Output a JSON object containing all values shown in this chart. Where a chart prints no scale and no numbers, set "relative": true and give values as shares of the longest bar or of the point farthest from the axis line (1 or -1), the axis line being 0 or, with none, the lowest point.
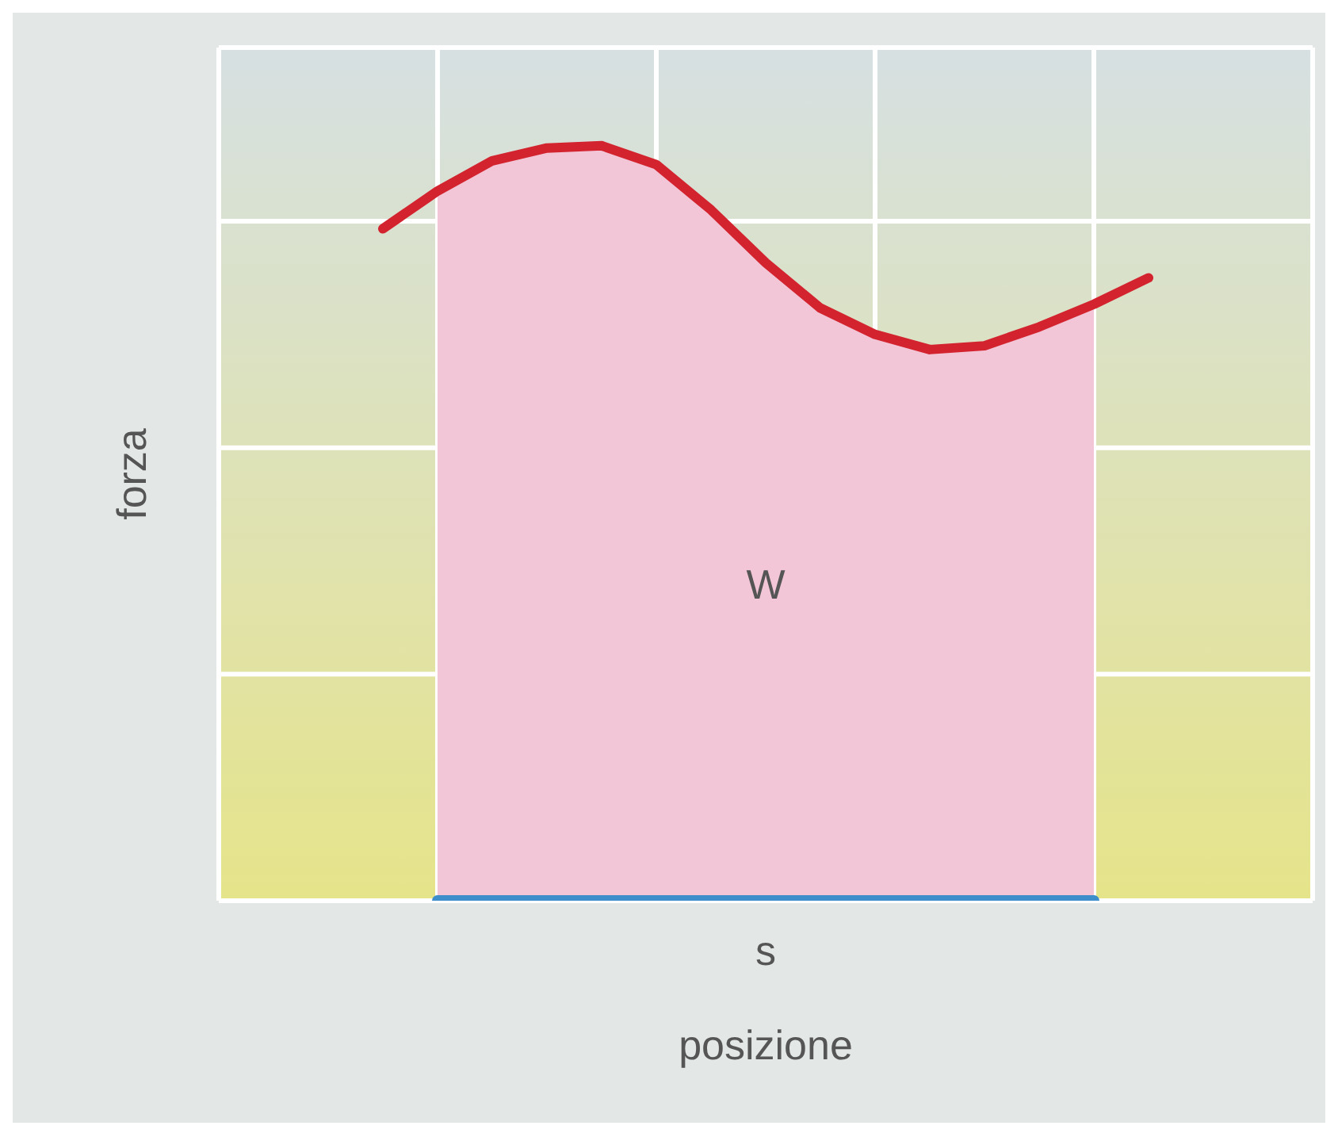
{
  "chart_data": {
    "type": "line",
    "relative": true,
    "xlabel": "posizione",
    "ylabel": "forza",
    "grid": true,
    "marker": "none",
    "line_style": "solid",
    "categories": [
      null,
      null,
      null,
      null,
      null,
      null,
      null,
      null,
      null,
      null,
      null,
      null,
      null,
      null,
      null,
      null,
      null,
      null,
      null,
      null,
      null
    ],
    "series": [
      {
        "type": "area",
        "color": "#f2c6d6",
        "values": [
          null,
          null,
          null,
          null,
          0.94,
          0.98,
          0.997,
          1,
          0.975,
          0.915,
          0.845,
          0.785,
          0.75,
          0.73,
          0.735,
          0.76,
          0.79,
          null,
          null,
          null,
          null
        ]
      },
      {
        "color": "#d3232e",
        "values": [
          null,
          null,
          null,
          0.89,
          0.94,
          0.98,
          0.997,
          1,
          0.975,
          0.915,
          0.845,
          0.785,
          0.75,
          0.73,
          0.735,
          0.76,
          0.79,
          0.825,
          null,
          null,
          null
        ]
      },
      {
        "color": "#3d8ecb",
        "values": [
          null,
          null,
          null,
          null,
          0,
          0,
          0,
          0,
          0,
          0,
          0,
          0,
          0,
          0,
          0,
          0,
          0,
          null,
          null,
          null,
          null
        ]
      }
    ],
    "annotations": [
      "W",
      "s"
    ]
  }
}
